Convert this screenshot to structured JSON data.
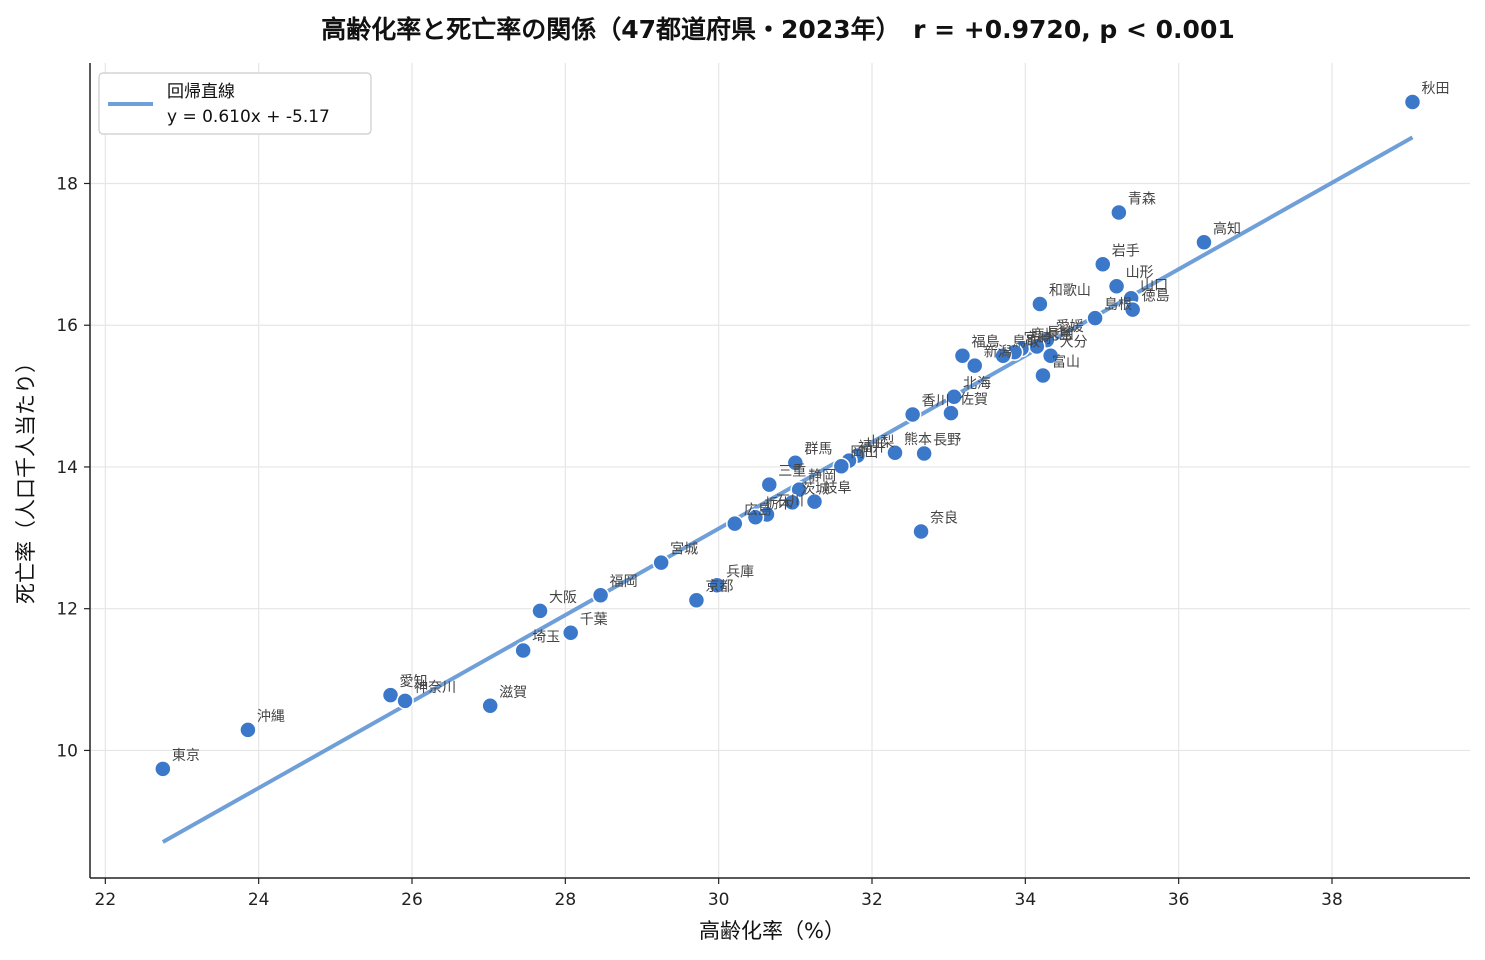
{
  "chart_data": {
    "type": "scatter",
    "title": "高齢化率と死亡率の関係（47都道府県・2023年）　r = +0.9720, p < 0.001",
    "xlabel": "高齢化率（%）",
    "ylabel": "死亡率（人口千人当たり）",
    "xlim": [
      21.8,
      39.8
    ],
    "ylim": [
      8.2,
      19.7
    ],
    "xticks": [
      22,
      24,
      26,
      28,
      30,
      32,
      34,
      36,
      38
    ],
    "yticks": [
      10,
      12,
      14,
      16,
      18
    ],
    "grid": true,
    "legend_position": "top-left",
    "colors": {
      "points": "#3b78c9",
      "line": "#6f9fd8",
      "point_edge": "#ffffff"
    },
    "regression": {
      "name": "回帰直線",
      "equation": "y = 0.610x + -5.17",
      "slope": 0.61,
      "intercept": -5.17,
      "x_range": [
        22.75,
        39.05
      ]
    },
    "points": [
      {
        "label": "秋田",
        "x": 39.05,
        "y": 19.15
      },
      {
        "label": "青森",
        "x": 35.22,
        "y": 17.59
      },
      {
        "label": "高知",
        "x": 36.33,
        "y": 17.17
      },
      {
        "label": "岩手",
        "x": 35.01,
        "y": 16.86
      },
      {
        "label": "山形",
        "x": 35.19,
        "y": 16.55
      },
      {
        "label": "山口",
        "x": 35.38,
        "y": 16.38
      },
      {
        "label": "徳島",
        "x": 35.4,
        "y": 16.22
      },
      {
        "label": "島根",
        "x": 34.91,
        "y": 16.1
      },
      {
        "label": "和歌山",
        "x": 34.19,
        "y": 16.3
      },
      {
        "label": "愛媛",
        "x": 34.28,
        "y": 15.79
      },
      {
        "label": "長崎",
        "x": 34.15,
        "y": 15.7
      },
      {
        "label": "鹿児島",
        "x": 33.95,
        "y": 15.67
      },
      {
        "label": "宮崎",
        "x": 33.86,
        "y": 15.62
      },
      {
        "label": "鳥取",
        "x": 33.71,
        "y": 15.57
      },
      {
        "label": "福島",
        "x": 33.18,
        "y": 15.57
      },
      {
        "label": "新潟",
        "x": 33.34,
        "y": 15.43
      },
      {
        "label": "大分",
        "x": 34.33,
        "y": 15.57
      },
      {
        "label": "富山",
        "x": 34.23,
        "y": 15.29
      },
      {
        "label": "香川",
        "x": 32.53,
        "y": 14.74
      },
      {
        "label": "北海",
        "x": 33.07,
        "y": 14.99
      },
      {
        "label": "佐賀",
        "x": 33.03,
        "y": 14.76
      },
      {
        "label": "熊本",
        "x": 32.3,
        "y": 14.2
      },
      {
        "label": "長野",
        "x": 32.68,
        "y": 14.19
      },
      {
        "label": "山梨",
        "x": 31.81,
        "y": 14.16
      },
      {
        "label": "福井",
        "x": 31.7,
        "y": 14.09
      },
      {
        "label": "奈良",
        "x": 32.64,
        "y": 13.09
      },
      {
        "label": "群馬",
        "x": 31.0,
        "y": 14.06
      },
      {
        "label": "岡山",
        "x": 31.6,
        "y": 14.01
      },
      {
        "label": "三重",
        "x": 30.66,
        "y": 13.75
      },
      {
        "label": "静岡",
        "x": 31.05,
        "y": 13.68
      },
      {
        "label": "岐阜",
        "x": 31.25,
        "y": 13.51
      },
      {
        "label": "茨城",
        "x": 30.96,
        "y": 13.5
      },
      {
        "label": "石川",
        "x": 30.63,
        "y": 13.33
      },
      {
        "label": "栃木",
        "x": 30.48,
        "y": 13.29
      },
      {
        "label": "広島",
        "x": 30.21,
        "y": 13.2
      },
      {
        "label": "宮城",
        "x": 29.25,
        "y": 12.65
      },
      {
        "label": "滋賀",
        "x": 27.02,
        "y": 10.63
      },
      {
        "label": "兵庫",
        "x": 29.98,
        "y": 12.33
      },
      {
        "label": "京都",
        "x": 29.71,
        "y": 12.12
      },
      {
        "label": "福岡",
        "x": 28.46,
        "y": 12.19
      },
      {
        "label": "大阪",
        "x": 27.67,
        "y": 11.97
      },
      {
        "label": "千葉",
        "x": 28.07,
        "y": 11.66
      },
      {
        "label": "埼玉",
        "x": 27.45,
        "y": 11.41
      },
      {
        "label": "愛知",
        "x": 25.72,
        "y": 10.78
      },
      {
        "label": "神奈川",
        "x": 25.91,
        "y": 10.7
      },
      {
        "label": "沖縄",
        "x": 23.86,
        "y": 10.29
      },
      {
        "label": "東京",
        "x": 22.75,
        "y": 9.74
      }
    ]
  }
}
